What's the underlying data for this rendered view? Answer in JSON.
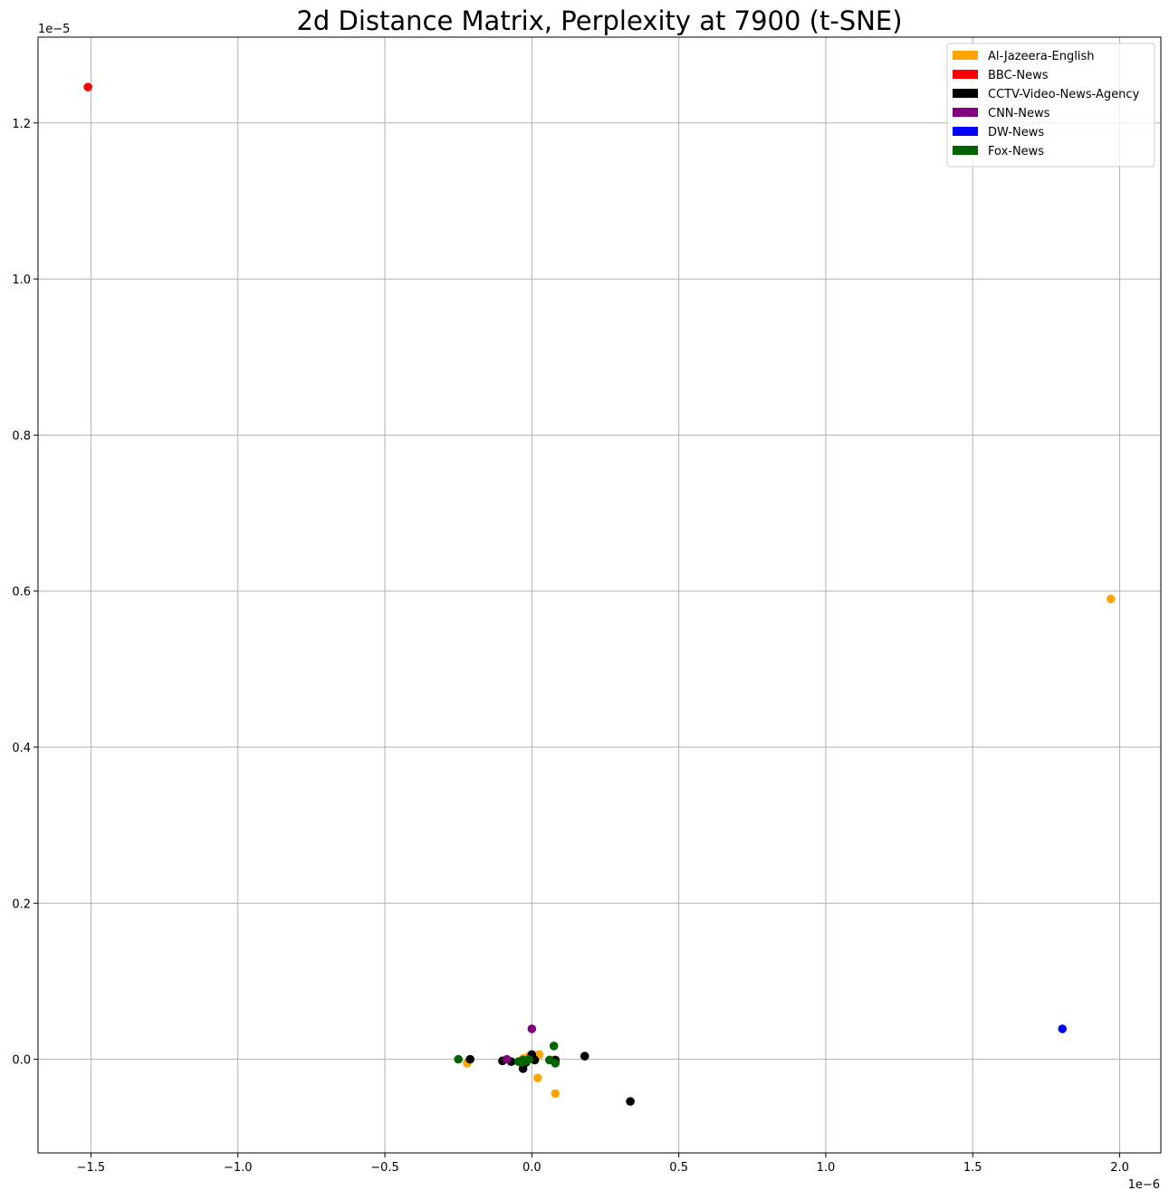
{
  "chart_data": {
    "type": "scatter",
    "title": "2d Distance Matrix, Perplexity at 7900 (t-SNE)",
    "xlabel": "",
    "ylabel": "",
    "x_offset_label": "1e−6",
    "y_offset_label": "1e−5",
    "xlim": [
      -1.68,
      2.14
    ],
    "ylim": [
      -0.12,
      1.31
    ],
    "x_ticks": [
      -1.5,
      -1.0,
      -0.5,
      0.0,
      0.5,
      1.0,
      1.5,
      2.0
    ],
    "x_tick_labels": [
      "−1.5",
      "−1.0",
      "−0.5",
      "0.0",
      "0.5",
      "1.0",
      "1.5",
      "2.0"
    ],
    "y_ticks": [
      0.0,
      0.2,
      0.4,
      0.6,
      0.8,
      1.0,
      1.2
    ],
    "y_tick_labels": [
      "0.0",
      "0.2",
      "0.4",
      "0.6",
      "0.8",
      "1.0",
      "1.2"
    ],
    "grid": true,
    "legend_position": "top-right",
    "series": [
      {
        "name": "Al-Jazeera-English",
        "color": "#ffa500",
        "points": [
          [
            1.97,
            0.59
          ],
          [
            0.08,
            -0.044
          ],
          [
            0.02,
            -0.024
          ],
          [
            -0.22,
            -0.005
          ],
          [
            0.025,
            0.006
          ],
          [
            -0.03,
            0.001
          ],
          [
            0.07,
            -0.001
          ],
          [
            -0.01,
            0.004
          ]
        ]
      },
      {
        "name": "BBC-News",
        "color": "#ff0000",
        "points": [
          [
            -1.51,
            1.246
          ]
        ]
      },
      {
        "name": "CCTV-Video-News-Agency",
        "color": "#000000",
        "points": [
          [
            0.335,
            -0.054
          ],
          [
            0.18,
            0.004
          ],
          [
            -0.21,
            0.0
          ],
          [
            -0.1,
            -0.002
          ],
          [
            -0.07,
            -0.003
          ],
          [
            -0.03,
            -0.012
          ],
          [
            0.0,
            0.006
          ],
          [
            0.01,
            -0.001
          ],
          [
            0.08,
            -0.001
          ],
          [
            -0.02,
            -0.004
          ],
          [
            -0.005,
            0.001
          ]
        ]
      },
      {
        "name": "CNN-News",
        "color": "#800080",
        "points": [
          [
            0.0,
            0.039
          ],
          [
            -0.085,
            0.0
          ]
        ]
      },
      {
        "name": "DW-News",
        "color": "#0000ff",
        "points": [
          [
            1.805,
            0.039
          ]
        ]
      },
      {
        "name": "Fox-News",
        "color": "#006400",
        "points": [
          [
            0.075,
            0.017
          ],
          [
            -0.25,
            0.0
          ],
          [
            0.06,
            -0.001
          ],
          [
            0.08,
            -0.005
          ],
          [
            -0.045,
            -0.003
          ],
          [
            -0.03,
            -0.001
          ],
          [
            -0.02,
            -0.002
          ],
          [
            -0.01,
            0.0
          ],
          [
            -0.035,
            -0.004
          ]
        ]
      }
    ]
  }
}
